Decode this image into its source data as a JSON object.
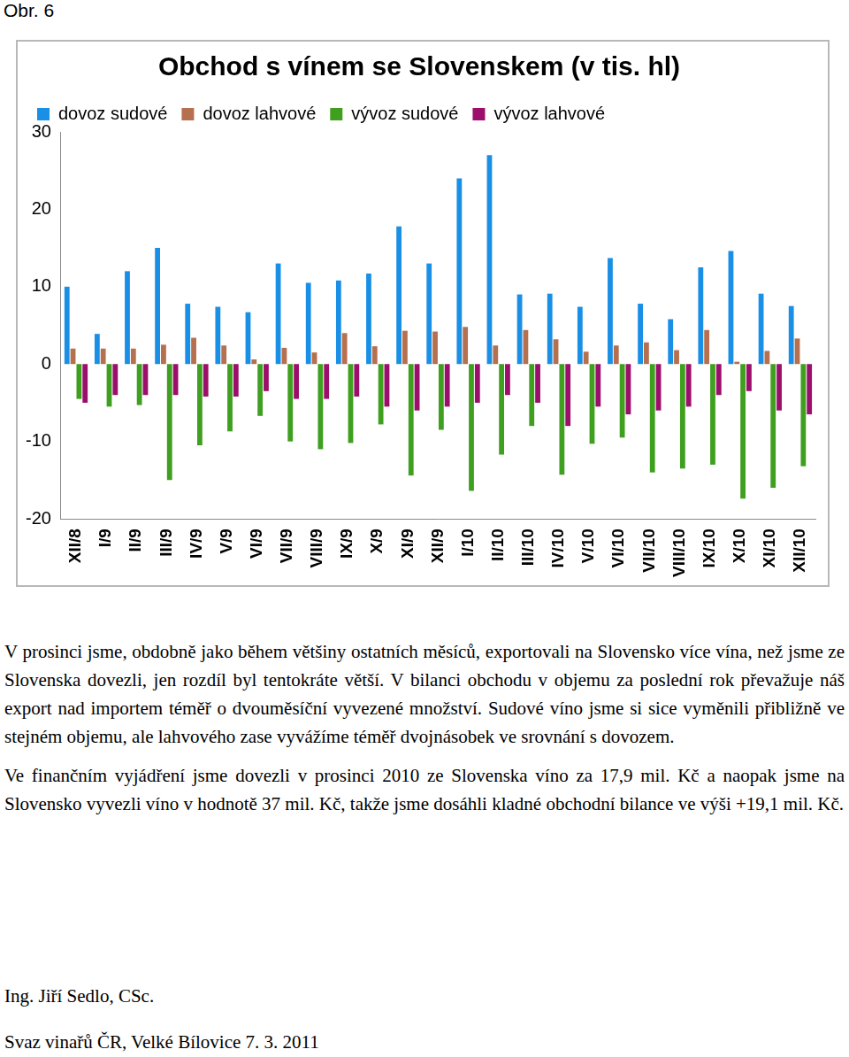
{
  "caption": "Obr. 6",
  "chart_data": {
    "type": "bar",
    "title": "Obchod s vínem se Slovenskem (v tis. hl)",
    "categories": [
      "XII/8",
      "I/9",
      "II/9",
      "III/9",
      "IV/9",
      "V/9",
      "VI/9",
      "VII/9",
      "VIII/9",
      "IX/9",
      "X/9",
      "XI/9",
      "XII/9",
      "I/10",
      "II/10",
      "III/10",
      "IV/10",
      "V/10",
      "VI/10",
      "VII/10",
      "VIII/10",
      "IX/10",
      "X/10",
      "XI/10",
      "XII/10"
    ],
    "series": [
      {
        "name": "dovoz sudové",
        "color": "#1a8fe6",
        "values": [
          10,
          3.9,
          12,
          15,
          7.8,
          7.4,
          6.7,
          13,
          10.5,
          10.8,
          11.7,
          17.8,
          13,
          24,
          27,
          9,
          9.1,
          7.4,
          13.7,
          7.8,
          5.8,
          12.5,
          14.6,
          9.1,
          7.5
        ]
      },
      {
        "name": "dovoz lahvové",
        "color": "#b5704f",
        "values": [
          2,
          2,
          2,
          2.5,
          3.4,
          2.4,
          0.6,
          2.1,
          1.5,
          4,
          2.3,
          4.3,
          4.2,
          4.8,
          2.4,
          4.4,
          3.2,
          1.6,
          2.4,
          2.8,
          1.8,
          4.4,
          0.3,
          1.7,
          3.3
        ]
      },
      {
        "name": "vývoz sudové",
        "color": "#3f9f1f",
        "values": [
          -4.5,
          -5.5,
          -5.3,
          -15,
          -10.5,
          -8.7,
          -6.7,
          -10,
          -11,
          -10.2,
          -7.8,
          -14.4,
          -8.5,
          -16.4,
          -11.7,
          -8,
          -14.3,
          -10.3,
          -9.5,
          -14,
          -13.5,
          -13,
          -17.4,
          -16,
          -13.2
        ]
      },
      {
        "name": "vývoz lahvové",
        "color": "#9c0e6b",
        "values": [
          -5,
          -4,
          -4,
          -4,
          -4.2,
          -4.2,
          -3.5,
          -4.5,
          -4.5,
          -4.2,
          -5.5,
          -6,
          -5.5,
          -5,
          -4,
          -5,
          -8,
          -5.5,
          -6.5,
          -6,
          -5.5,
          -4,
          -3.5,
          -6,
          -6.5
        ]
      }
    ],
    "ylim": [
      -20,
      30
    ],
    "yticks": [
      -20,
      -10,
      0,
      10,
      20,
      30
    ],
    "grid": false,
    "legend": "top-left"
  },
  "paragraphs": [
    "V prosinci jsme, obdobně jako během většiny ostatních měsíců, exportovali na Slovensko více vína, než jsme ze Slovenska dovezli, jen rozdíl byl tentokráte větší. V bilanci obchodu v objemu za poslední rok převažuje náš export nad importem téměř o dvouměsíční vyvezené množství. Sudové víno jsme si sice vyměnili přibližně ve stejném objemu, ale lahvového zase vyvážíme téměř dvojnásobek ve srovnání s dovozem.",
    "Ve finančním vyjádření jsme dovezli v prosinci 2010 ze Slovenska víno za 17,9 mil. Kč a naopak jsme na Slovensko vyvezli víno v hodnotě 37 mil. Kč, takže jsme dosáhli kladné obchodní bilance ve výši +19,1 mil. Kč."
  ],
  "author": "Ing. Jiří Sedlo, CSc.",
  "organization": "Svaz vinařů ČR, Velké Bílovice 7. 3. 2011"
}
